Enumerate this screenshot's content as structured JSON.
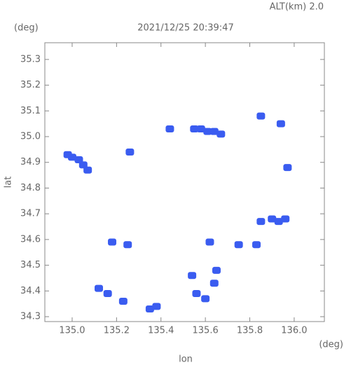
{
  "chart_data": {
    "type": "scatter",
    "annotation": "ALT(km) 2.0",
    "title": "2021/12/25 20:39:47",
    "y_unit": "(deg)",
    "x_unit": "(deg)",
    "x_label": "lon",
    "y_label": "lat",
    "xlim": [
      134.877,
      136.136
    ],
    "ylim": [
      34.281,
      35.365
    ],
    "xticks": [
      {
        "value": 135.0,
        "label": "135.0"
      },
      135.2,
      135.4,
      135.6,
      135.8,
      {
        "value": 136.0,
        "label": "136.0"
      }
    ],
    "yticks": [
      34.3,
      34.4,
      34.5,
      34.6,
      34.7,
      34.8,
      34.9,
      {
        "value": 35.0,
        "label": "35.0"
      },
      35.1,
      35.2,
      35.3
    ],
    "series": [
      {
        "color": "#3a5cf0",
        "x": [
          134.98,
          135.0,
          135.03,
          135.05,
          135.07,
          135.26,
          135.44,
          135.55,
          135.58,
          135.61,
          135.64,
          135.67,
          135.85,
          135.94,
          135.97,
          135.85,
          135.9,
          135.93,
          135.96,
          135.18,
          135.25,
          135.12,
          135.16,
          135.23,
          135.35,
          135.38,
          135.54,
          135.56,
          135.6,
          135.64,
          135.65,
          135.62,
          135.75,
          135.83
        ],
        "y": [
          34.93,
          34.92,
          34.91,
          34.89,
          34.87,
          34.94,
          35.03,
          35.03,
          35.03,
          35.02,
          35.02,
          35.01,
          35.08,
          35.05,
          34.88,
          34.67,
          34.68,
          34.67,
          34.68,
          34.59,
          34.58,
          34.41,
          34.39,
          34.36,
          34.33,
          34.34,
          34.46,
          34.39,
          34.37,
          34.43,
          34.48,
          34.59,
          34.58,
          34.58
        ]
      }
    ]
  }
}
